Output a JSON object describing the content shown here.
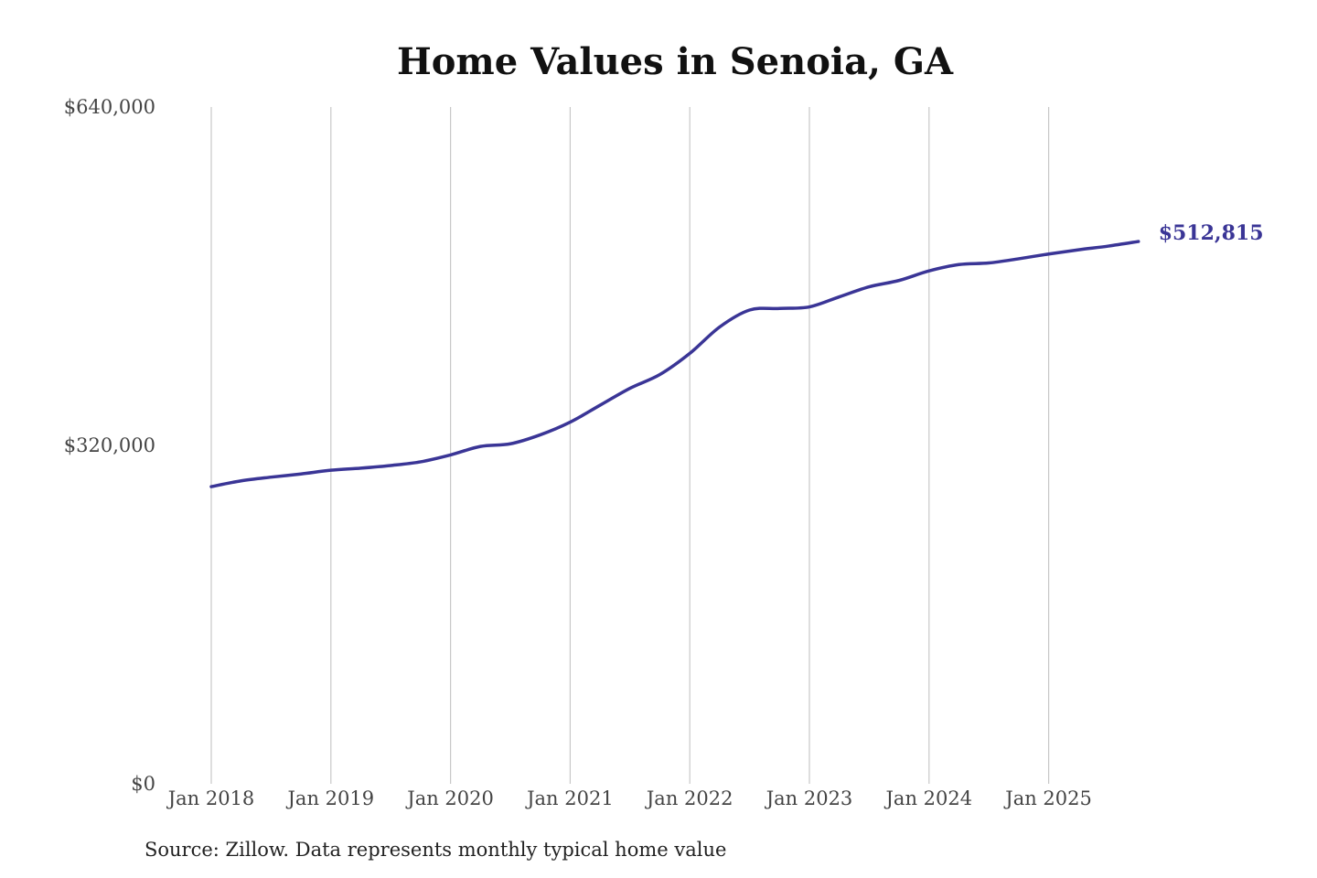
{
  "chart_data": {
    "type": "line",
    "title": "Home Values in Senoia, GA",
    "source": "Source: Zillow. Data represents monthly typical home value",
    "xlabel": "",
    "ylabel": "",
    "ylim": [
      0,
      640000
    ],
    "yticks": [
      0,
      320000,
      640000
    ],
    "ytick_labels": [
      "$0",
      "$320,000",
      "$640,000"
    ],
    "xticks": [
      "2018-01",
      "2019-01",
      "2020-01",
      "2021-01",
      "2022-01",
      "2023-01",
      "2024-01",
      "2025-01"
    ],
    "xtick_labels": [
      "Jan 2018",
      "Jan 2019",
      "Jan 2020",
      "Jan 2021",
      "Jan 2022",
      "Jan 2023",
      "Jan 2024",
      "Jan 2025"
    ],
    "grid": "vertical",
    "line_color": "#3a3596",
    "end_label": "$512,815",
    "series": [
      {
        "x": [
          "2018-01",
          "2018-04",
          "2018-07",
          "2018-10",
          "2019-01",
          "2019-04",
          "2019-07",
          "2019-10",
          "2020-01",
          "2020-04",
          "2020-07",
          "2020-10",
          "2021-01",
          "2021-04",
          "2021-07",
          "2021-10",
          "2022-01",
          "2022-04",
          "2022-07",
          "2022-10",
          "2023-01",
          "2023-04",
          "2023-07",
          "2023-10",
          "2024-01",
          "2024-04",
          "2024-07",
          "2024-10",
          "2025-01",
          "2025-04",
          "2025-07",
          "2025-10"
        ],
        "values": [
          281000,
          286500,
          290000,
          293000,
          296500,
          298500,
          301000,
          304500,
          311000,
          319000,
          321500,
          330000,
          342000,
          358000,
          374000,
          387000,
          407000,
          432000,
          448000,
          449500,
          451000,
          460500,
          470000,
          476000,
          485000,
          491000,
          492500,
          496500,
          501000,
          505000,
          508500,
          512815
        ]
      }
    ]
  }
}
